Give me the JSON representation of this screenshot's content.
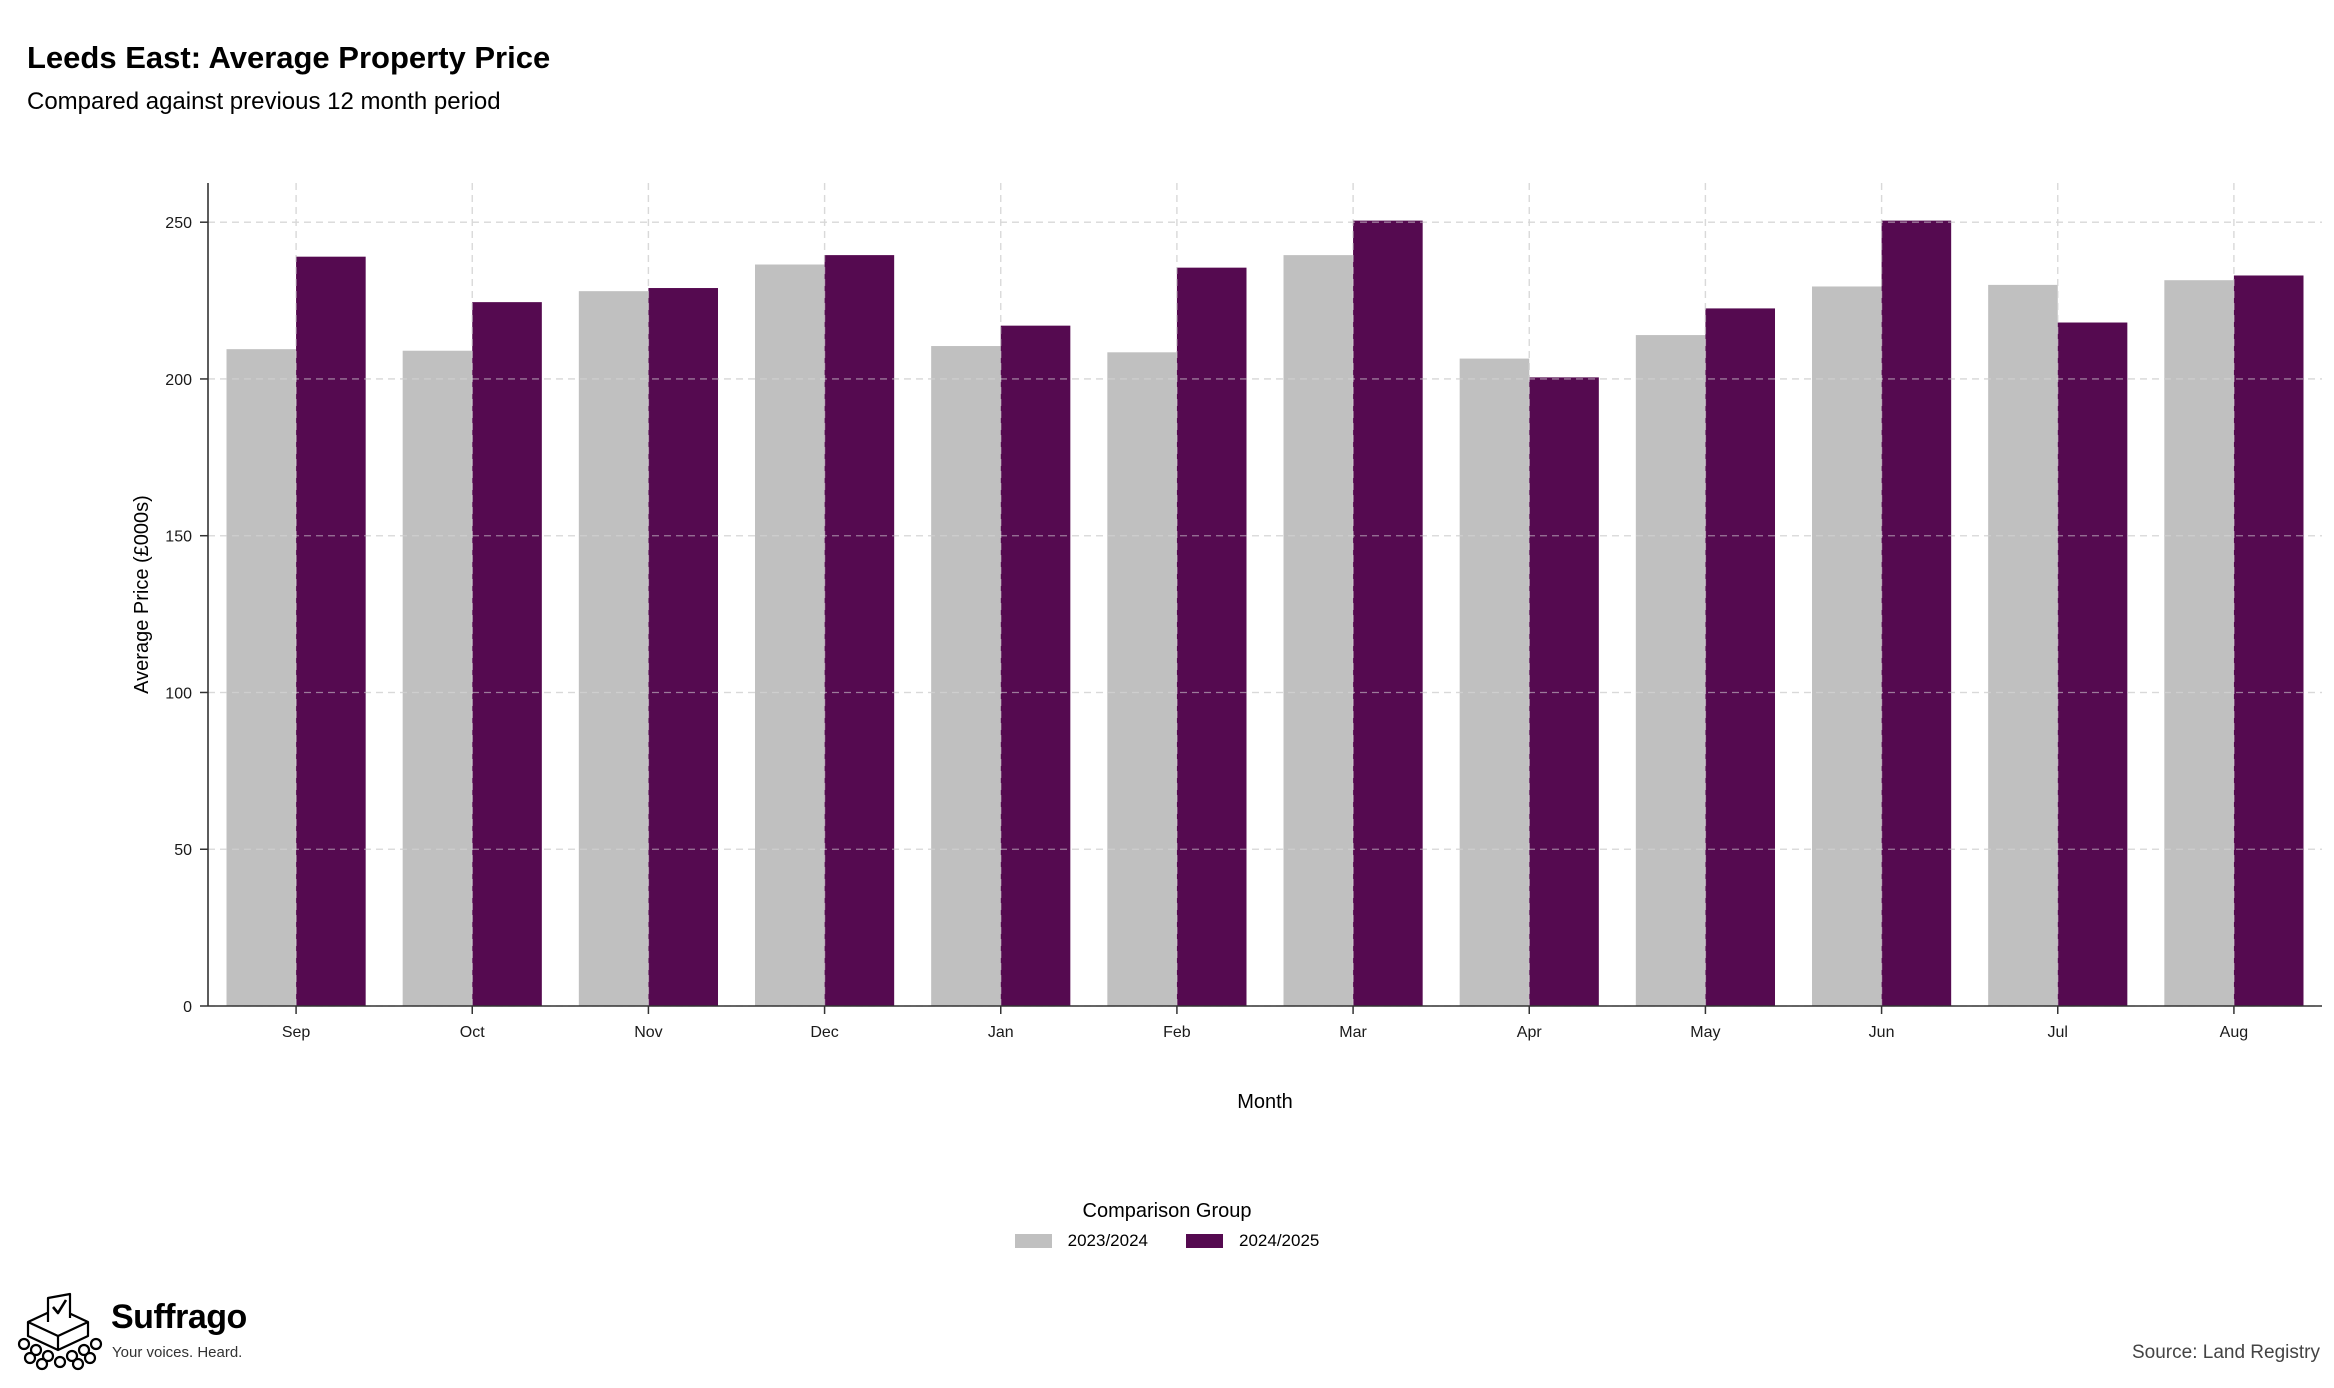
{
  "chart_data": {
    "type": "bar",
    "title": "Leeds East: Average Property Price",
    "subtitle": "Compared against previous 12 month period",
    "xlabel": "Month",
    "ylabel": "Average Price (£000s)",
    "categories": [
      "Sep",
      "Oct",
      "Nov",
      "Dec",
      "Jan",
      "Feb",
      "Mar",
      "Apr",
      "May",
      "Jun",
      "Jul",
      "Aug"
    ],
    "series": [
      {
        "name": "2023/2024",
        "color": "#c0c0c0",
        "values": [
          209.5,
          209,
          228,
          236.5,
          210.5,
          208.5,
          239.5,
          206.5,
          214,
          229.5,
          230,
          231.5
        ]
      },
      {
        "name": "2024/2025",
        "color": "#550a50",
        "values": [
          239,
          224.5,
          229,
          239.5,
          217,
          235.5,
          250.5,
          200.5,
          222.5,
          250.5,
          218,
          233
        ]
      }
    ],
    "ylim": [
      0,
      262.5
    ],
    "yticks": [
      0,
      50,
      100,
      150,
      200,
      250
    ],
    "grid": true,
    "legend_title": "Comparison Group",
    "legend_position": "bottom"
  },
  "branding": {
    "name": "Suffrago",
    "tagline": "Your voices. Heard.",
    "icon": "ballot-box-icon"
  },
  "source": "Source: Land Registry"
}
